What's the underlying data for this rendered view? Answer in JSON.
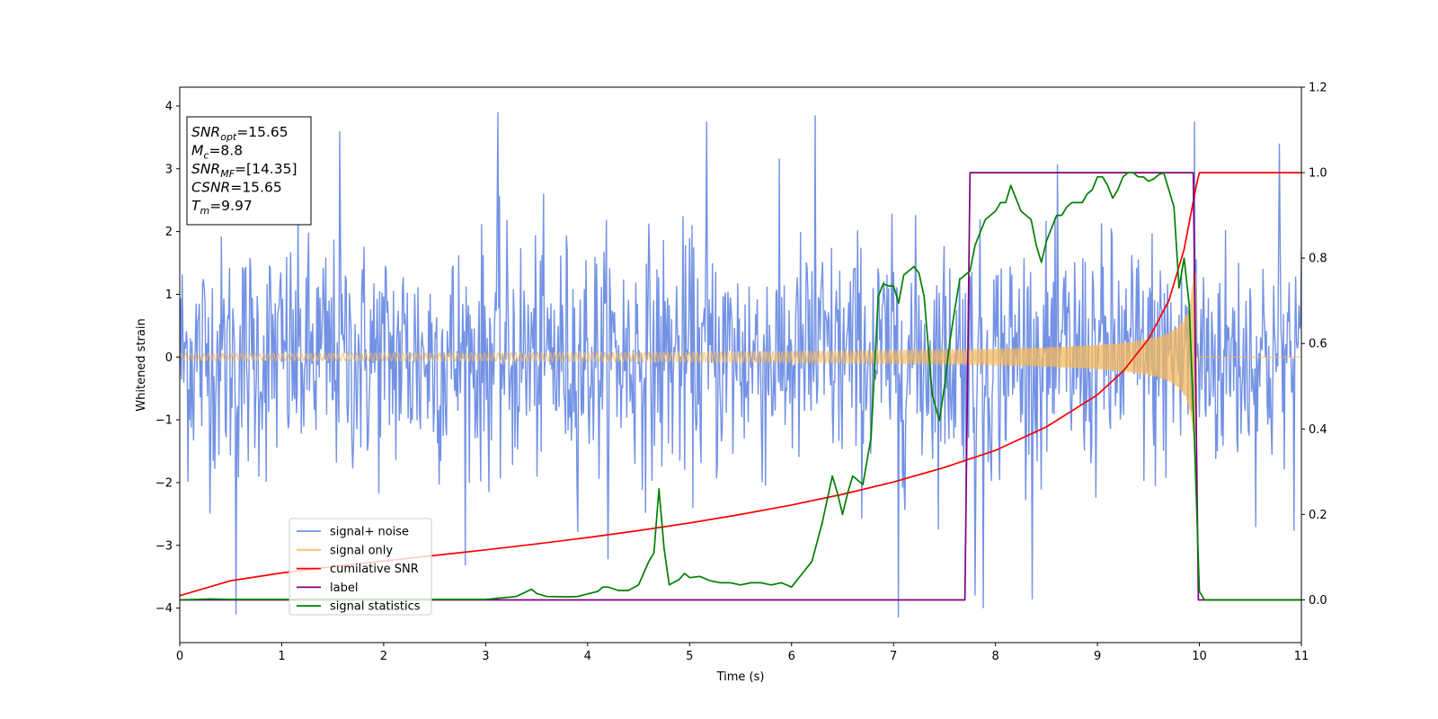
{
  "chart_data": {
    "type": "line",
    "xlabel": "Time (s)",
    "ylabel": "Whitened strain",
    "xlim": [
      0,
      11
    ],
    "ylim": [
      -4.55,
      4.3
    ],
    "y2lim": [
      -0.1,
      1.2
    ],
    "xticks": [
      0,
      1,
      2,
      3,
      4,
      5,
      6,
      7,
      8,
      9,
      10,
      11
    ],
    "yticks": [
      -4,
      -3,
      -2,
      -1,
      0,
      1,
      2,
      3,
      4
    ],
    "y2ticks": [
      0.0,
      0.2,
      0.4,
      0.6,
      0.8,
      1.0,
      1.2
    ],
    "grid": false,
    "legend_position": "lower-left",
    "annotation": [
      {
        "main": "SNR",
        "sub": "opt",
        "value": "=15.65"
      },
      {
        "main": "M",
        "sub": "c",
        "value": "=8.8"
      },
      {
        "main": "SNR",
        "sub": "MF",
        "value": "=[14.35]"
      },
      {
        "main": "CSNR",
        "sub": "",
        "value": "=15.65"
      },
      {
        "main": "T",
        "sub": "m",
        "value": "=9.97"
      }
    ],
    "series": [
      {
        "name": "signal+ noise",
        "axis": "left",
        "color": "#5b7fe0",
        "description_kind": "noise",
        "sampling_step": 0.008,
        "noise_sigma": 1.0,
        "extremes": [
          {
            "x": 0.55,
            "y": -4.1
          },
          {
            "x": 1.57,
            "y": 3.6
          },
          {
            "x": 3.12,
            "y": 3.9
          },
          {
            "x": 5.17,
            "y": 3.75
          },
          {
            "x": 6.23,
            "y": 3.85
          },
          {
            "x": 7.05,
            "y": -4.15
          },
          {
            "x": 7.8,
            "y": -3.8
          },
          {
            "x": 7.88,
            "y": -4.0
          },
          {
            "x": 9.95,
            "y": 3.75
          },
          {
            "x": 10.78,
            "y": 3.4
          }
        ]
      },
      {
        "name": "signal only",
        "axis": "left",
        "color": "#f5b85a",
        "description_kind": "chirp",
        "t_merge": 9.97,
        "amplitude_start": 0.06,
        "peak_amplitude": 1.35,
        "freq_start": 22,
        "freq_end": 120
      },
      {
        "name": "cumilative SNR",
        "axis": "right",
        "color": "#ff0000",
        "x": [
          0,
          0.5,
          1,
          1.5,
          2,
          2.5,
          3,
          3.5,
          4,
          4.5,
          5,
          5.5,
          6,
          6.5,
          7,
          7.5,
          8,
          8.5,
          9,
          9.25,
          9.5,
          9.7,
          9.85,
          9.97,
          10.0,
          11.0
        ],
        "y": [
          0.01,
          0.045,
          0.063,
          0.078,
          0.091,
          0.104,
          0.117,
          0.131,
          0.146,
          0.162,
          0.18,
          0.2,
          0.222,
          0.247,
          0.276,
          0.31,
          0.35,
          0.405,
          0.48,
          0.535,
          0.61,
          0.7,
          0.82,
          0.97,
          1.0,
          1.0
        ]
      },
      {
        "name": "label",
        "axis": "right",
        "color": "#800080",
        "x": [
          0,
          7.7,
          7.75,
          9.94,
          9.99,
          11.0
        ],
        "y": [
          0,
          0,
          1,
          1,
          0,
          0
        ]
      },
      {
        "name": "signal statistics",
        "axis": "right",
        "color": "#008000",
        "x": [
          0,
          0.3,
          0.5,
          1.0,
          2.0,
          3.0,
          3.3,
          3.45,
          3.5,
          3.6,
          3.8,
          3.9,
          4.0,
          4.05,
          4.1,
          4.15,
          4.2,
          4.3,
          4.4,
          4.5,
          4.6,
          4.65,
          4.7,
          4.75,
          4.8,
          4.9,
          4.95,
          5.0,
          5.1,
          5.2,
          5.3,
          5.4,
          5.5,
          5.6,
          5.7,
          5.8,
          5.9,
          6.0,
          6.1,
          6.2,
          6.3,
          6.4,
          6.45,
          6.5,
          6.55,
          6.6,
          6.7,
          6.78,
          6.85,
          6.9,
          6.95,
          7.0,
          7.05,
          7.1,
          7.15,
          7.2,
          7.25,
          7.3,
          7.38,
          7.45,
          7.5,
          7.55,
          7.6,
          7.65,
          7.7,
          7.75,
          7.8,
          7.85,
          7.9,
          7.95,
          8.0,
          8.05,
          8.1,
          8.15,
          8.2,
          8.25,
          8.3,
          8.35,
          8.4,
          8.45,
          8.5,
          8.55,
          8.6,
          8.65,
          8.7,
          8.75,
          8.8,
          8.85,
          8.9,
          8.95,
          9.0,
          9.05,
          9.1,
          9.15,
          9.2,
          9.25,
          9.3,
          9.35,
          9.4,
          9.45,
          9.5,
          9.55,
          9.6,
          9.65,
          9.7,
          9.75,
          9.8,
          9.85,
          9.9,
          9.95,
          10.0,
          10.05,
          10.5,
          11.0
        ],
        "y": [
          0.0,
          0.002,
          0.001,
          0.001,
          0.001,
          0.001,
          0.008,
          0.025,
          0.015,
          0.008,
          0.007,
          0.008,
          0.014,
          0.017,
          0.02,
          0.03,
          0.03,
          0.022,
          0.022,
          0.035,
          0.09,
          0.11,
          0.26,
          0.12,
          0.035,
          0.048,
          0.062,
          0.052,
          0.055,
          0.045,
          0.04,
          0.04,
          0.035,
          0.04,
          0.04,
          0.035,
          0.04,
          0.03,
          0.06,
          0.09,
          0.18,
          0.29,
          0.25,
          0.2,
          0.25,
          0.29,
          0.27,
          0.38,
          0.71,
          0.74,
          0.735,
          0.735,
          0.695,
          0.76,
          0.77,
          0.78,
          0.765,
          0.71,
          0.48,
          0.42,
          0.5,
          0.6,
          0.68,
          0.75,
          0.76,
          0.77,
          0.83,
          0.86,
          0.89,
          0.9,
          0.91,
          0.93,
          0.93,
          0.97,
          0.94,
          0.91,
          0.9,
          0.89,
          0.83,
          0.79,
          0.84,
          0.87,
          0.9,
          0.9,
          0.92,
          0.93,
          0.93,
          0.93,
          0.95,
          0.96,
          0.99,
          0.99,
          0.97,
          0.94,
          0.96,
          0.99,
          1.0,
          1.0,
          0.99,
          0.99,
          0.98,
          0.985,
          0.995,
          1.0,
          0.96,
          0.92,
          0.73,
          0.8,
          0.69,
          0.38,
          0.02,
          0.0,
          0.0,
          0.0
        ]
      }
    ]
  }
}
